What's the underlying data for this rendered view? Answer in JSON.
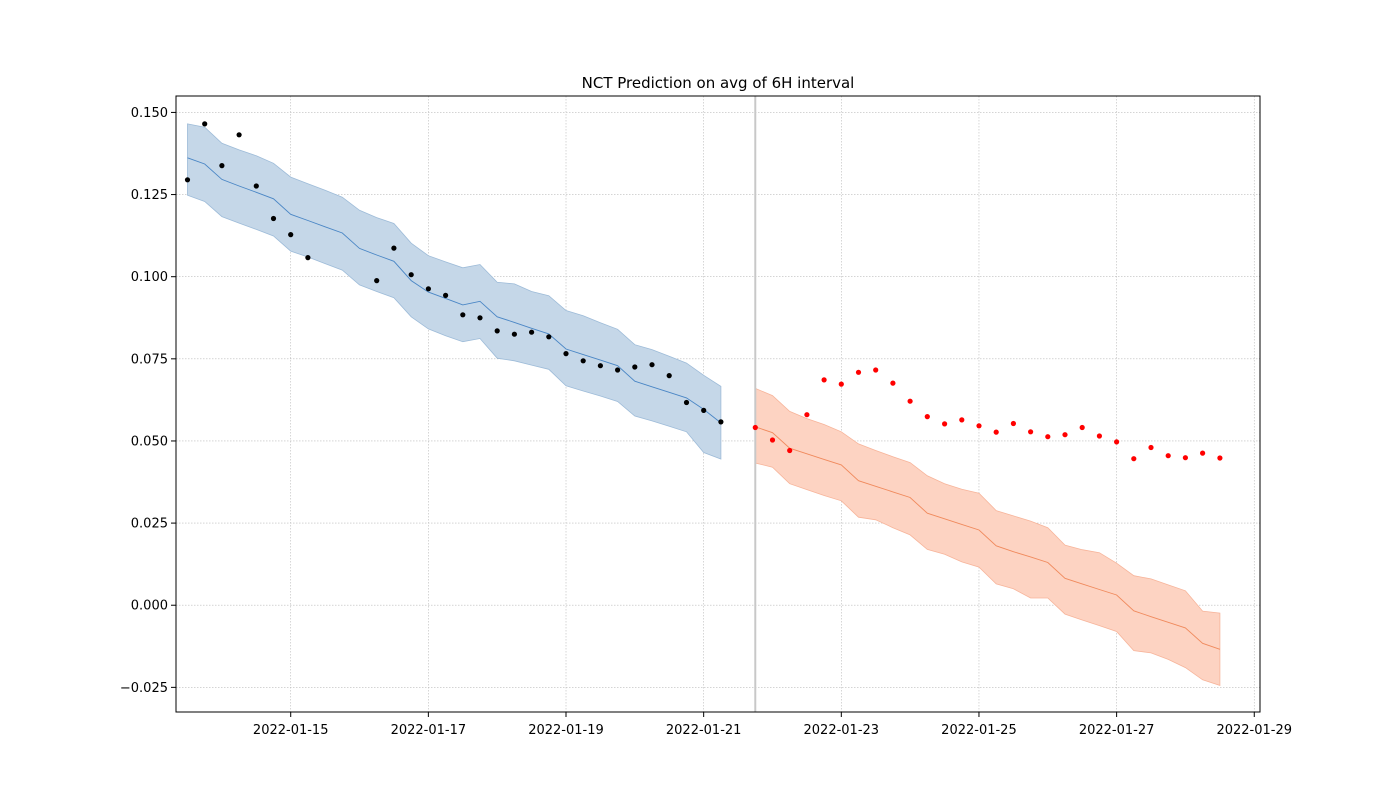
{
  "chart_data": {
    "type": "line",
    "title": "NCT Prediction on avg of 6H interval",
    "xlabel": "",
    "ylabel": "",
    "x_axis_type": "date",
    "xlim": [
      "2022-01-13T08:00",
      "2022-01-29T02:00"
    ],
    "ylim": [
      -0.0325,
      0.155
    ],
    "x_ticks": [
      "2022-01-15",
      "2022-01-17",
      "2022-01-19",
      "2022-01-21",
      "2022-01-23",
      "2022-01-25",
      "2022-01-27",
      "2022-01-29"
    ],
    "y_ticks": [
      -0.025,
      0.0,
      0.025,
      0.05,
      0.075,
      0.1,
      0.125,
      0.15
    ],
    "y_tick_labels": [
      "−0.025",
      "0.000",
      "0.025",
      "0.050",
      "0.075",
      "0.100",
      "0.125",
      "0.150"
    ],
    "grid": true,
    "split_date": "2022-01-21T18:00",
    "colors": {
      "train_band": "#c5d7e8",
      "train_band_edge": "#9dbbd8",
      "train_line": "#4a86c5",
      "train_points": "#000000",
      "test_band": "#fdd3c2",
      "test_band_edge": "#f7b49a",
      "test_line": "#f08a5d",
      "test_points": "#ff0000",
      "split_line": "#c8c8c8",
      "grid": "#bbbbbb"
    },
    "series": [
      {
        "role": "train_observed",
        "points": [
          [
            "2022-01-13T12:00",
            0.1295
          ],
          [
            "2022-01-13T18:00",
            0.1465
          ],
          [
            "2022-01-14T00:00",
            0.1338
          ],
          [
            "2022-01-14T06:00",
            0.1432
          ],
          [
            "2022-01-14T12:00",
            0.1276
          ],
          [
            "2022-01-14T18:00",
            0.1177
          ],
          [
            "2022-01-15T00:00",
            0.1128
          ],
          [
            "2022-01-15T06:00",
            0.1058
          ],
          [
            "2022-01-16T06:00",
            0.0988
          ],
          [
            "2022-01-16T12:00",
            0.1087
          ],
          [
            "2022-01-16T18:00",
            0.1006
          ],
          [
            "2022-01-17T00:00",
            0.0963
          ],
          [
            "2022-01-17T06:00",
            0.0943
          ],
          [
            "2022-01-17T12:00",
            0.0884
          ],
          [
            "2022-01-17T18:00",
            0.0875
          ],
          [
            "2022-01-18T00:00",
            0.0835
          ],
          [
            "2022-01-18T06:00",
            0.0825
          ],
          [
            "2022-01-18T12:00",
            0.0831
          ],
          [
            "2022-01-18T18:00",
            0.0817
          ],
          [
            "2022-01-19T00:00",
            0.0766
          ],
          [
            "2022-01-19T06:00",
            0.0744
          ],
          [
            "2022-01-19T12:00",
            0.0729
          ],
          [
            "2022-01-19T18:00",
            0.0716
          ],
          [
            "2022-01-20T00:00",
            0.0725
          ],
          [
            "2022-01-20T06:00",
            0.0732
          ],
          [
            "2022-01-20T12:00",
            0.0699
          ],
          [
            "2022-01-20T18:00",
            0.0617
          ],
          [
            "2022-01-21T00:00",
            0.0593
          ],
          [
            "2022-01-21T06:00",
            0.0558
          ]
        ]
      },
      {
        "role": "train_fit",
        "points": [
          [
            "2022-01-13T12:00",
            0.1362
          ],
          [
            "2022-01-13T18:00",
            0.1343
          ],
          [
            "2022-01-14T00:00",
            0.1296
          ],
          [
            "2022-01-14T06:00",
            0.1276
          ],
          [
            "2022-01-14T12:00",
            0.1257
          ],
          [
            "2022-01-14T18:00",
            0.1237
          ],
          [
            "2022-01-15T00:00",
            0.119
          ],
          [
            "2022-01-15T06:00",
            0.1171
          ],
          [
            "2022-01-15T12:00",
            0.1152
          ],
          [
            "2022-01-15T18:00",
            0.1133
          ],
          [
            "2022-01-16T00:00",
            0.1086
          ],
          [
            "2022-01-16T06:00",
            0.1066
          ],
          [
            "2022-01-16T12:00",
            0.1047
          ],
          [
            "2022-01-16T18:00",
            0.0988
          ],
          [
            "2022-01-17T00:00",
            0.0953
          ],
          [
            "2022-01-17T06:00",
            0.0934
          ],
          [
            "2022-01-17T12:00",
            0.0914
          ],
          [
            "2022-01-17T18:00",
            0.0925
          ],
          [
            "2022-01-18T00:00",
            0.0878
          ],
          [
            "2022-01-18T06:00",
            0.0861
          ],
          [
            "2022-01-18T12:00",
            0.0843
          ],
          [
            "2022-01-18T18:00",
            0.0826
          ],
          [
            "2022-01-19T00:00",
            0.078
          ],
          [
            "2022-01-19T06:00",
            0.0763
          ],
          [
            "2022-01-19T12:00",
            0.0746
          ],
          [
            "2022-01-19T18:00",
            0.0729
          ],
          [
            "2022-01-20T00:00",
            0.0682
          ],
          [
            "2022-01-20T06:00",
            0.0665
          ],
          [
            "2022-01-20T12:00",
            0.0648
          ],
          [
            "2022-01-20T18:00",
            0.0631
          ],
          [
            "2022-01-21T00:00",
            0.0596
          ],
          [
            "2022-01-21T06:00",
            0.0555
          ]
        ]
      },
      {
        "role": "train_interval",
        "lower": [
          0.1248,
          0.1229,
          0.1183,
          0.1163,
          0.1144,
          0.1124,
          0.1078,
          0.106,
          0.104,
          0.102,
          0.0975,
          0.0955,
          0.0936,
          0.0878,
          0.0841,
          0.082,
          0.0802,
          0.0812,
          0.0752,
          0.0744,
          0.0731,
          0.0718,
          0.0668,
          0.0652,
          0.0637,
          0.062,
          0.0576,
          0.0561,
          0.0545,
          0.0528,
          0.0465,
          0.0445
        ],
        "upper": [
          0.1465,
          0.1455,
          0.1406,
          0.1386,
          0.1368,
          0.1345,
          0.1303,
          0.1283,
          0.1263,
          0.1242,
          0.1202,
          0.118,
          0.1162,
          0.1102,
          0.1064,
          0.1045,
          0.1027,
          0.1037,
          0.0983,
          0.0978,
          0.0955,
          0.0942,
          0.0897,
          0.0881,
          0.086,
          0.084,
          0.0793,
          0.0778,
          0.0758,
          0.0737,
          0.07,
          0.0666
        ]
      },
      {
        "role": "test_observed",
        "points": [
          [
            "2022-01-21T18:00",
            0.0541
          ],
          [
            "2022-01-22T00:00",
            0.0503
          ],
          [
            "2022-01-22T06:00",
            0.0471
          ],
          [
            "2022-01-22T12:00",
            0.058
          ],
          [
            "2022-01-22T18:00",
            0.0686
          ],
          [
            "2022-01-23T00:00",
            0.0673
          ],
          [
            "2022-01-23T06:00",
            0.0709
          ],
          [
            "2022-01-23T12:00",
            0.0716
          ],
          [
            "2022-01-23T18:00",
            0.0676
          ],
          [
            "2022-01-24T00:00",
            0.0621
          ],
          [
            "2022-01-24T06:00",
            0.0574
          ],
          [
            "2022-01-24T12:00",
            0.0552
          ],
          [
            "2022-01-24T18:00",
            0.0564
          ],
          [
            "2022-01-25T00:00",
            0.0546
          ],
          [
            "2022-01-25T06:00",
            0.0527
          ],
          [
            "2022-01-25T12:00",
            0.0553
          ],
          [
            "2022-01-25T18:00",
            0.0528
          ],
          [
            "2022-01-26T00:00",
            0.0513
          ],
          [
            "2022-01-26T06:00",
            0.0519
          ],
          [
            "2022-01-26T12:00",
            0.0541
          ],
          [
            "2022-01-26T18:00",
            0.0515
          ],
          [
            "2022-01-27T00:00",
            0.0497
          ],
          [
            "2022-01-27T06:00",
            0.0446
          ],
          [
            "2022-01-27T12:00",
            0.048
          ],
          [
            "2022-01-27T18:00",
            0.0455
          ],
          [
            "2022-01-28T00:00",
            0.0449
          ],
          [
            "2022-01-28T06:00",
            0.0463
          ],
          [
            "2022-01-28T12:00",
            0.0448
          ]
        ]
      },
      {
        "role": "test_forecast",
        "points": [
          [
            "2022-01-21T18:00",
            0.0543
          ],
          [
            "2022-01-22T00:00",
            0.0525
          ],
          [
            "2022-01-22T06:00",
            0.0478
          ],
          [
            "2022-01-22T12:00",
            0.0461
          ],
          [
            "2022-01-22T18:00",
            0.0444
          ],
          [
            "2022-01-23T00:00",
            0.0427
          ],
          [
            "2022-01-23T06:00",
            0.0379
          ],
          [
            "2022-01-23T12:00",
            0.0362
          ],
          [
            "2022-01-23T18:00",
            0.0345
          ],
          [
            "2022-01-24T00:00",
            0.0328
          ],
          [
            "2022-01-24T06:00",
            0.028
          ],
          [
            "2022-01-24T12:00",
            0.0263
          ],
          [
            "2022-01-24T18:00",
            0.0246
          ],
          [
            "2022-01-25T00:00",
            0.0229
          ],
          [
            "2022-01-25T06:00",
            0.0181
          ],
          [
            "2022-01-25T12:00",
            0.0163
          ],
          [
            "2022-01-25T18:00",
            0.0147
          ],
          [
            "2022-01-26T00:00",
            0.013
          ],
          [
            "2022-01-26T06:00",
            0.0082
          ],
          [
            "2022-01-26T12:00",
            0.0065
          ],
          [
            "2022-01-26T18:00",
            0.0048
          ],
          [
            "2022-01-27T00:00",
            0.0031
          ],
          [
            "2022-01-27T06:00",
            -0.0017
          ],
          [
            "2022-01-27T12:00",
            -0.0035
          ],
          [
            "2022-01-27T18:00",
            -0.0052
          ],
          [
            "2022-01-28T00:00",
            -0.0069
          ],
          [
            "2022-01-28T06:00",
            -0.0116
          ],
          [
            "2022-01-28T12:00",
            -0.0134
          ]
        ]
      },
      {
        "role": "test_interval",
        "lower": [
          0.0433,
          0.042,
          0.037,
          0.0352,
          0.0334,
          0.0318,
          0.0268,
          0.026,
          0.0236,
          0.0214,
          0.017,
          0.0155,
          0.0132,
          0.0116,
          0.0065,
          0.005,
          0.0022,
          0.0022,
          -0.0027,
          -0.0045,
          -0.0062,
          -0.008,
          -0.0138,
          -0.0145,
          -0.0165,
          -0.019,
          -0.0227,
          -0.0244
        ],
        "upper": [
          0.066,
          0.0638,
          0.059,
          0.0568,
          0.055,
          0.0528,
          0.0491,
          0.0471,
          0.0452,
          0.0434,
          0.0394,
          0.037,
          0.0353,
          0.0341,
          0.0288,
          0.0272,
          0.0256,
          0.0236,
          0.0183,
          0.0169,
          0.016,
          0.0128,
          0.009,
          0.008,
          0.0062,
          0.0044,
          -0.0018,
          -0.0024
        ]
      }
    ]
  }
}
